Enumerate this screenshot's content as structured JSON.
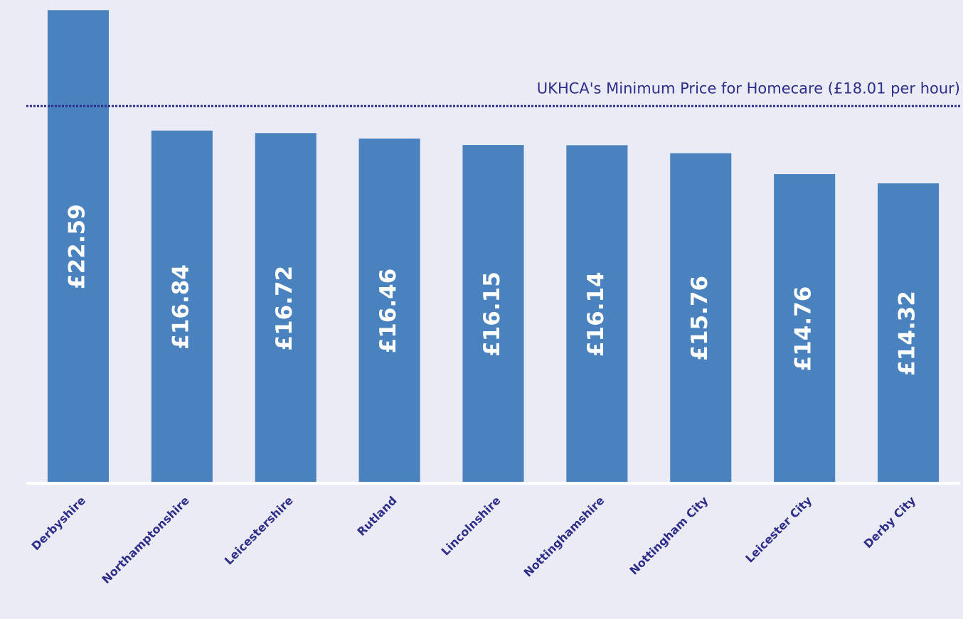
{
  "chart_data": {
    "type": "bar",
    "categories": [
      "Derbyshire",
      "Northamptonshire",
      "Leicestershire",
      "Rutland",
      "Lincolnshire",
      "Nottinghamshire",
      "Nottingham City",
      "Leicester City",
      "Derby City"
    ],
    "values": [
      22.59,
      16.84,
      16.72,
      16.46,
      16.15,
      16.14,
      15.76,
      14.76,
      14.32
    ],
    "value_labels": [
      "£22.59",
      "£16.84",
      "£16.72",
      "£16.46",
      "£16.15",
      "£16.14",
      "£15.76",
      "£14.76",
      "£14.32"
    ],
    "color": "#4a81bf",
    "ylim": [
      0,
      22.6
    ],
    "reference_line": {
      "value": 18.01,
      "label": "UKHCA's Minimum Price for Homecare (£18.01 per hour)",
      "color": "#2e2e8a"
    }
  }
}
